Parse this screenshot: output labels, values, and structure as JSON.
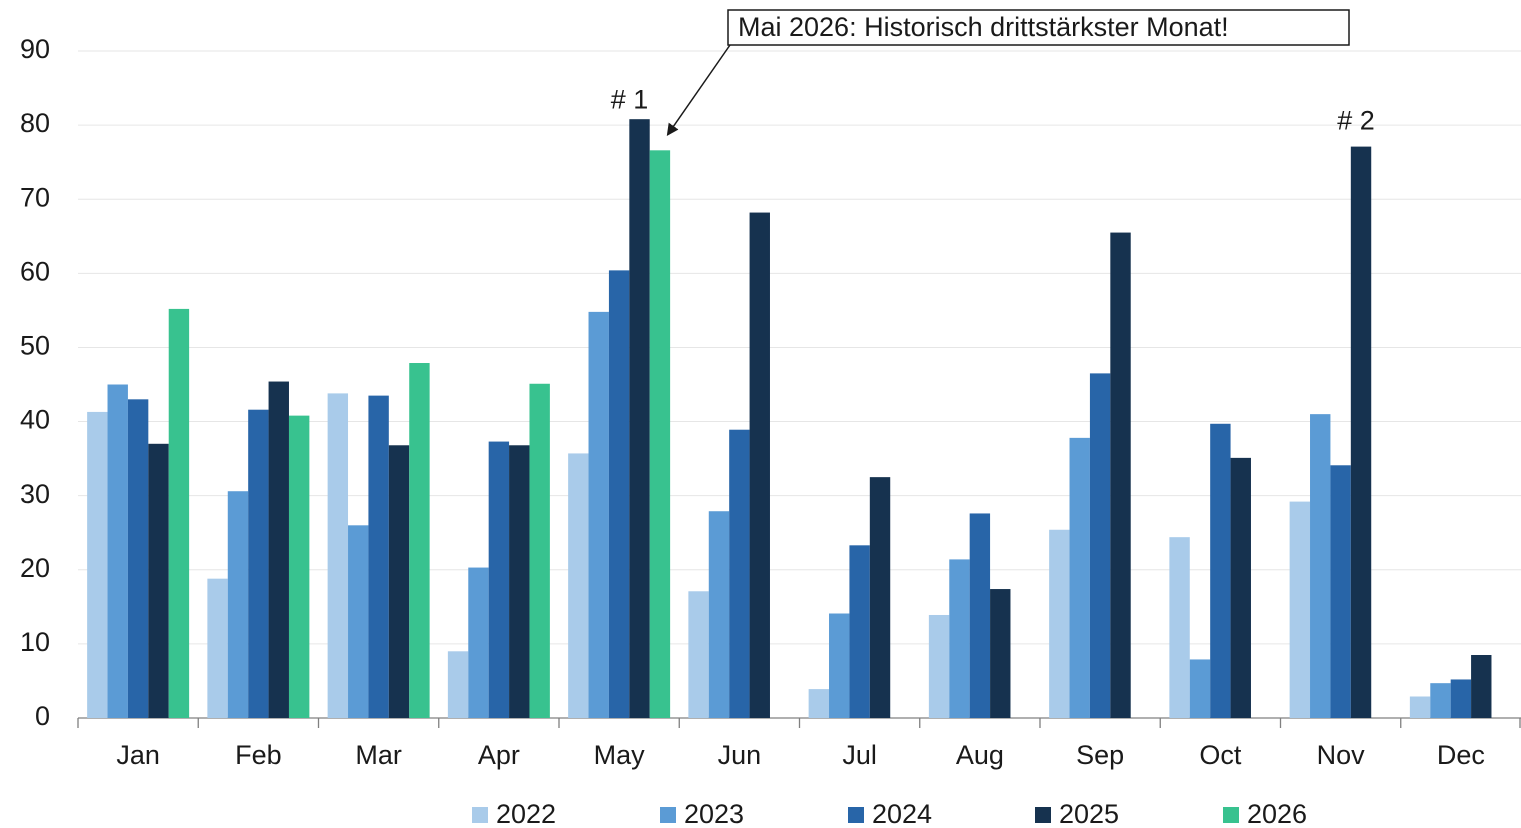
{
  "chart_data": {
    "type": "bar",
    "categories": [
      "Jan",
      "Feb",
      "Mar",
      "Apr",
      "May",
      "Jun",
      "Jul",
      "Aug",
      "Sep",
      "Oct",
      "Nov",
      "Dec"
    ],
    "series": [
      {
        "name": "2022",
        "color": "#a9cbea",
        "values": [
          41.3,
          18.8,
          43.8,
          9,
          35.7,
          17.1,
          3.9,
          13.9,
          25.4,
          24.4,
          29.2,
          2.9
        ]
      },
      {
        "name": "2023",
        "color": "#5b9bd5",
        "values": [
          45,
          30.6,
          26,
          20.3,
          54.8,
          27.9,
          14.1,
          21.4,
          37.8,
          7.9,
          41,
          4.7
        ]
      },
      {
        "name": "2024",
        "color": "#2865a8",
        "values": [
          43,
          41.6,
          43.5,
          37.3,
          60.4,
          38.9,
          23.3,
          27.6,
          46.5,
          39.7,
          34.1,
          5.2
        ]
      },
      {
        "name": "2025",
        "color": "#16324f",
        "values": [
          37,
          45.4,
          36.8,
          36.8,
          80.8,
          68.2,
          32.5,
          17.4,
          65.5,
          35.1,
          77.1,
          8.5
        ]
      },
      {
        "name": "2026",
        "color": "#38c28f",
        "values": [
          55.2,
          40.8,
          47.9,
          45.1,
          76.6,
          null,
          null,
          null,
          null,
          null,
          null,
          null
        ]
      }
    ],
    "ylim": [
      0,
      90
    ],
    "yticks": [
      0,
      10,
      20,
      30,
      40,
      50,
      60,
      70,
      80,
      90
    ],
    "grid": true,
    "legend": "bottom",
    "annotations": [
      "# 1",
      "# 2",
      "Mai 2026: Historisch drittstärkster Monat!"
    ]
  }
}
